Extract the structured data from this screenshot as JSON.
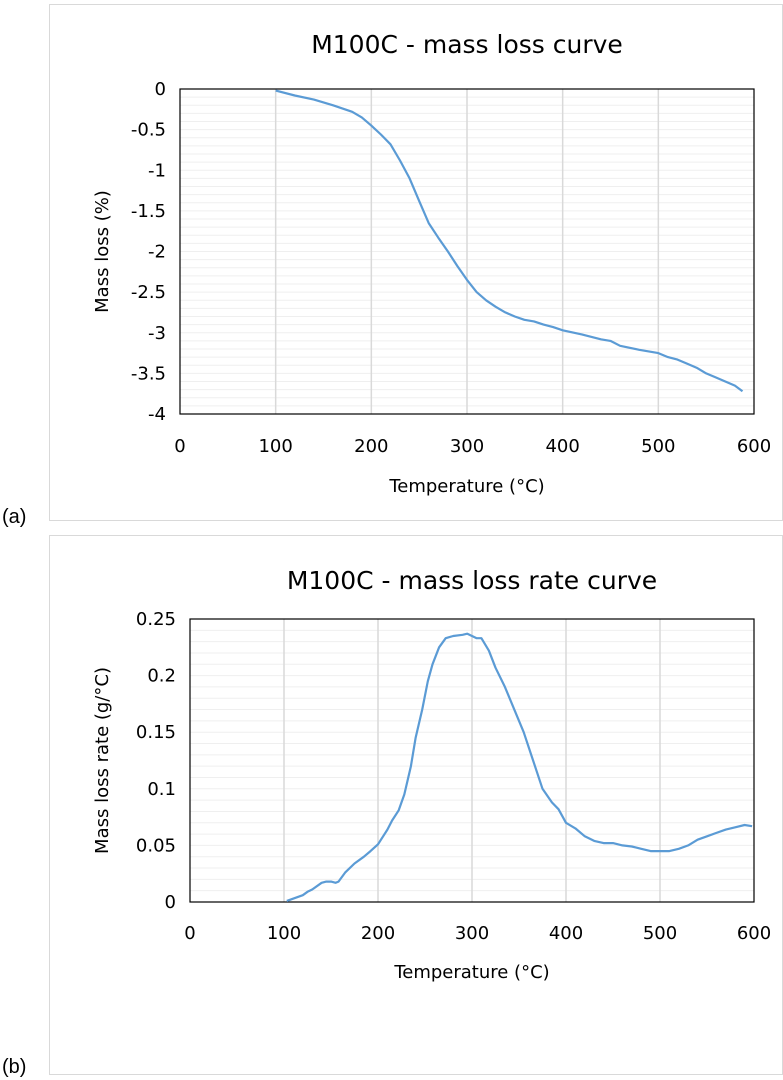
{
  "panel_labels": [
    "(a)",
    "(b)"
  ],
  "colors": {
    "line": "#5b9bd5",
    "major_grid": "#d9d9d9",
    "minor_grid": "#efefef",
    "axis": "#000000"
  },
  "chart_data": [
    {
      "type": "line",
      "title": "M100C - mass loss curve",
      "xlabel": "Temperature (°C)",
      "ylabel": "Mass loss (%)",
      "xlim": [
        0,
        600
      ],
      "ylim": [
        -4,
        0
      ],
      "xticks": [
        0,
        100,
        200,
        300,
        400,
        500,
        600
      ],
      "yticks": [
        0,
        -0.5,
        -1,
        -1.5,
        -2,
        -2.5,
        -3,
        -3.5,
        -4
      ],
      "ytick_labels": [
        "0",
        "-0.5",
        "-1",
        "-1.5",
        "-2",
        "-2.5",
        "-3",
        "-3.5",
        "-4"
      ],
      "grid": true,
      "minor_grid_y_step": 0.1,
      "series": [
        {
          "x": [
            100,
            120,
            140,
            160,
            180,
            190,
            200,
            210,
            220,
            230,
            240,
            250,
            260,
            270,
            280,
            290,
            300,
            310,
            320,
            330,
            340,
            350,
            360,
            370,
            380,
            390,
            400,
            420,
            440,
            450,
            460,
            480,
            500,
            510,
            520,
            530,
            540,
            550,
            560,
            570,
            580,
            588
          ],
          "y": [
            -0.02,
            -0.08,
            -0.13,
            -0.2,
            -0.28,
            -0.35,
            -0.45,
            -0.56,
            -0.68,
            -0.88,
            -1.1,
            -1.38,
            -1.65,
            -1.83,
            -2.0,
            -2.18,
            -2.35,
            -2.5,
            -2.6,
            -2.68,
            -2.75,
            -2.8,
            -2.84,
            -2.86,
            -2.9,
            -2.93,
            -2.97,
            -3.02,
            -3.08,
            -3.1,
            -3.16,
            -3.21,
            -3.25,
            -3.3,
            -3.33,
            -3.38,
            -3.43,
            -3.5,
            -3.55,
            -3.6,
            -3.65,
            -3.72
          ]
        }
      ]
    },
    {
      "type": "line",
      "title": "M100C - mass loss rate curve",
      "xlabel": "Temperature (°C)",
      "ylabel": "Mass loss rate (g/°C)",
      "xlim": [
        0,
        600
      ],
      "ylim": [
        0,
        0.25
      ],
      "xticks": [
        0,
        100,
        200,
        300,
        400,
        500,
        600
      ],
      "yticks": [
        0,
        0.05,
        0.1,
        0.15,
        0.2,
        0.25
      ],
      "ytick_labels": [
        "0",
        "0.05",
        "0.1",
        "0.15",
        "0.2",
        "0.25"
      ],
      "grid": true,
      "minor_grid_y_step": 0.01,
      "series": [
        {
          "x": [
            103,
            110,
            120,
            125,
            130,
            140,
            145,
            150,
            155,
            158,
            165,
            175,
            185,
            192,
            200,
            210,
            215,
            222,
            228,
            235,
            240,
            247,
            253,
            258,
            265,
            272,
            280,
            290,
            295,
            300,
            305,
            310,
            318,
            325,
            335,
            345,
            355,
            365,
            375,
            385,
            392,
            400,
            410,
            420,
            430,
            440,
            450,
            460,
            470,
            480,
            490,
            500,
            510,
            520,
            530,
            540,
            550,
            560,
            570,
            580,
            590,
            598
          ],
          "y": [
            0.001,
            0.003,
            0.006,
            0.009,
            0.011,
            0.017,
            0.018,
            0.018,
            0.017,
            0.018,
            0.026,
            0.034,
            0.04,
            0.045,
            0.051,
            0.064,
            0.072,
            0.081,
            0.095,
            0.12,
            0.145,
            0.17,
            0.195,
            0.21,
            0.225,
            0.233,
            0.235,
            0.236,
            0.237,
            0.235,
            0.233,
            0.233,
            0.222,
            0.207,
            0.19,
            0.17,
            0.15,
            0.125,
            0.1,
            0.088,
            0.082,
            0.07,
            0.065,
            0.058,
            0.054,
            0.052,
            0.052,
            0.05,
            0.049,
            0.047,
            0.045,
            0.045,
            0.045,
            0.047,
            0.05,
            0.055,
            0.058,
            0.061,
            0.064,
            0.066,
            0.068,
            0.067
          ]
        }
      ]
    }
  ]
}
